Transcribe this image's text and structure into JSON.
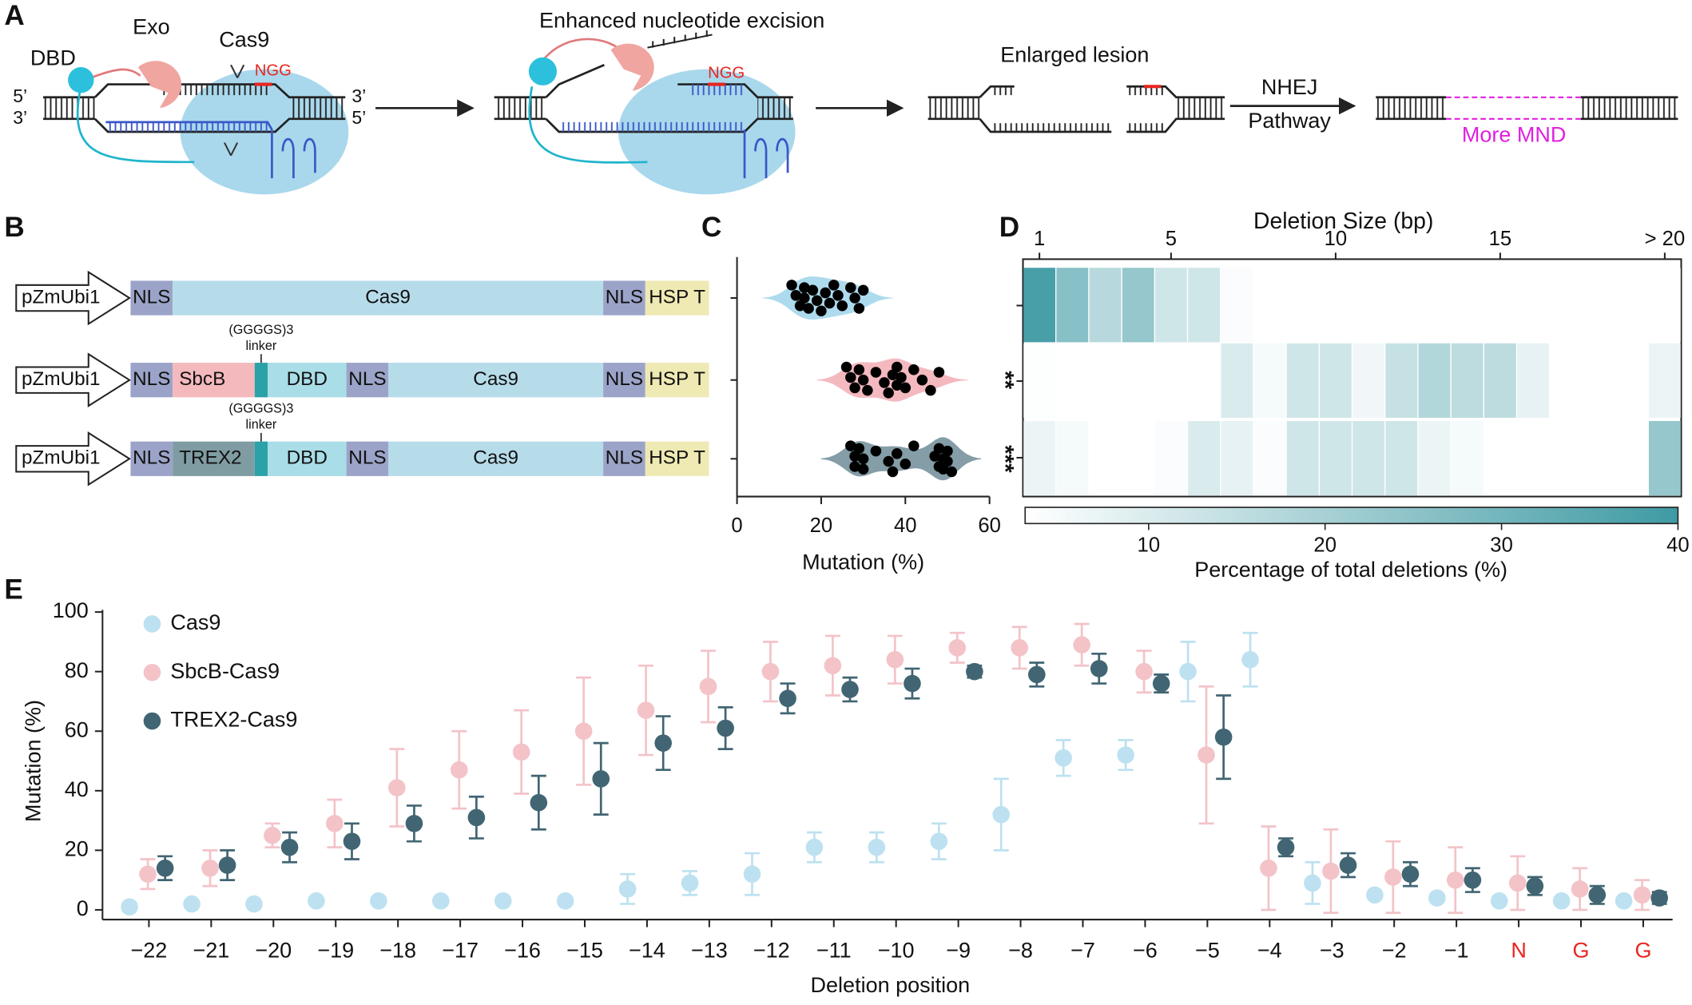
{
  "labels": {
    "a": "A",
    "b": "B",
    "c": "C",
    "d": "D",
    "e": "E"
  },
  "panel_a": {
    "dbd": "DBD",
    "exo": "Exo",
    "cas9": "Cas9",
    "ngg_1": "NGG",
    "end_5_left": "5’",
    "end_3_left": "3’",
    "end_3_right": "3’",
    "end_5_right": "5’",
    "step_2": "Enhanced nucleotide excision",
    "ngg_2": "NGG",
    "step_3": "Enlarged lesion",
    "nhej": "NHEJ",
    "pathway": "Pathway",
    "result": "More MND"
  },
  "panel_b": {
    "constructs": [
      {
        "promoter": "pZmUbi1",
        "parts": [
          "NLS",
          "Cas9",
          "NLS",
          "HSP T"
        ],
        "colors": [
          "#9ba4c8",
          "#b6dcea",
          "#9ba4c8",
          "#efe9b3"
        ]
      },
      {
        "promoter": "pZmUbi1",
        "parts": [
          "NLS",
          "SbcB",
          "DBD",
          "NLS",
          "Cas9",
          "NLS",
          "HSP T"
        ],
        "colors": [
          "#9ba4c8",
          "#f4b9bd",
          "#a9dde7",
          "#9ba4c8",
          "#b6dcea",
          "#9ba4c8",
          "#efe9b3"
        ],
        "linker": {
          "text": [
            "(GGGGS)3",
            "linker"
          ],
          "color": "#2aa2a8"
        }
      },
      {
        "promoter": "pZmUbi1",
        "parts": [
          "NLS",
          "TREX2",
          "DBD",
          "NLS",
          "Cas9",
          "NLS",
          "HSP T"
        ],
        "colors": [
          "#9ba4c8",
          "#7f9ca3",
          "#a9dde7",
          "#9ba4c8",
          "#b6dcea",
          "#9ba4c8",
          "#efe9b3"
        ],
        "linker": {
          "text": [
            "(GGGGS)3",
            "linker"
          ],
          "color": "#2aa2a8"
        }
      }
    ]
  },
  "chart_data": [
    {
      "type": "violin",
      "xlabel": "Mutation (%)",
      "xlim": [
        0,
        60
      ],
      "xticks": [
        0,
        20,
        40,
        60
      ],
      "series": [
        {
          "color": "#a9d9ec",
          "values": [
            13,
            14,
            15,
            16,
            16,
            17,
            18,
            19,
            20,
            21,
            22,
            23,
            24,
            25,
            27,
            28,
            29,
            30
          ]
        },
        {
          "color": "#f3b5bc",
          "significance": "**",
          "values": [
            26,
            27,
            28,
            29,
            30,
            31,
            33,
            35,
            36,
            37,
            38,
            38,
            39,
            40,
            42,
            44,
            46,
            48
          ]
        },
        {
          "color": "#7d98a2",
          "significance": "***",
          "values": [
            27,
            28,
            28,
            29,
            30,
            30,
            33,
            36,
            37,
            38,
            40,
            42,
            47,
            48,
            48,
            49,
            49,
            50,
            50,
            51
          ]
        }
      ]
    },
    {
      "type": "heatmap",
      "title": "Deletion Size (bp)",
      "categories": [
        "1",
        null,
        null,
        null,
        "5",
        null,
        null,
        null,
        null,
        "10",
        null,
        null,
        null,
        null,
        "15",
        null,
        null,
        null,
        null,
        "> 20"
      ],
      "values": [
        [
          38,
          25,
          15,
          22,
          10,
          10,
          1,
          0,
          0,
          0,
          0,
          0,
          0,
          0,
          0,
          0,
          0,
          0,
          0,
          0
        ],
        [
          0.5,
          0,
          0,
          0,
          0,
          0,
          8,
          2,
          10,
          10,
          3,
          12,
          16,
          14,
          14,
          5,
          0,
          0,
          0,
          4
        ],
        [
          4,
          2,
          0,
          0,
          1,
          8,
          5,
          1,
          10,
          10,
          10,
          10,
          4,
          2,
          0,
          0,
          0,
          0,
          0,
          22
        ]
      ],
      "clim": [
        3,
        40
      ],
      "cticks": [
        10,
        20,
        30,
        40
      ],
      "clabel": "Percentage of total deletions (%)",
      "color": "#3f9aa3"
    },
    {
      "type": "scatter_error",
      "xlabel": "Deletion position",
      "ylabel": "Mutation (%)",
      "categories": [
        "−22",
        "−21",
        "−20",
        "−19",
        "−18",
        "−17",
        "−16",
        "−15",
        "−14",
        "−13",
        "−12",
        "−11",
        "−10",
        "−9",
        "−8",
        "−7",
        "−6",
        "−5",
        "−4",
        "−3",
        "−2",
        "−1",
        "N",
        "G",
        "G"
      ],
      "category_colors": [
        "#111111",
        "#111111",
        "#111111",
        "#111111",
        "#111111",
        "#111111",
        "#111111",
        "#111111",
        "#111111",
        "#111111",
        "#111111",
        "#111111",
        "#111111",
        "#111111",
        "#111111",
        "#111111",
        "#111111",
        "#111111",
        "#111111",
        "#111111",
        "#111111",
        "#111111",
        "#e8251f",
        "#e8251f",
        "#e8251f"
      ],
      "ylim": [
        0,
        100
      ],
      "yticks": [
        0,
        20,
        40,
        60,
        80,
        100
      ],
      "series": [
        {
          "name": "Cas9",
          "color": "#bde1f0",
          "values": [
            1,
            2,
            2,
            3,
            3,
            3,
            3,
            3,
            7,
            9,
            12,
            21,
            21,
            23,
            32,
            51,
            52,
            80,
            84,
            9,
            5,
            4,
            3,
            3,
            3
          ],
          "errors": [
            0,
            0,
            0,
            0,
            0,
            0,
            0,
            0,
            5,
            4,
            7,
            5,
            5,
            6,
            12,
            6,
            5,
            10,
            9,
            7,
            1,
            0,
            0,
            0,
            0
          ]
        },
        {
          "name": "SbcB-Cas9",
          "color": "#f3c3c8",
          "values": [
            12,
            14,
            25,
            29,
            41,
            47,
            53,
            60,
            67,
            75,
            80,
            82,
            84,
            88,
            88,
            89,
            80,
            52,
            14,
            13,
            11,
            10,
            9,
            7,
            5
          ],
          "errors": [
            5,
            6,
            4,
            8,
            13,
            13,
            14,
            18,
            15,
            12,
            10,
            10,
            8,
            5,
            7,
            7,
            7,
            23,
            14,
            14,
            12,
            11,
            9,
            7,
            5
          ]
        },
        {
          "name": "TREX2-Cas9",
          "color": "#416573",
          "values": [
            14,
            15,
            21,
            23,
            29,
            31,
            36,
            44,
            56,
            61,
            71,
            74,
            76,
            80,
            79,
            81,
            76,
            58,
            21,
            15,
            12,
            10,
            8,
            5,
            4
          ],
          "errors": [
            4,
            5,
            5,
            6,
            6,
            7,
            9,
            12,
            9,
            7,
            5,
            4,
            5,
            2,
            4,
            5,
            3,
            14,
            3,
            4,
            4,
            4,
            3,
            3,
            2
          ]
        }
      ]
    }
  ]
}
